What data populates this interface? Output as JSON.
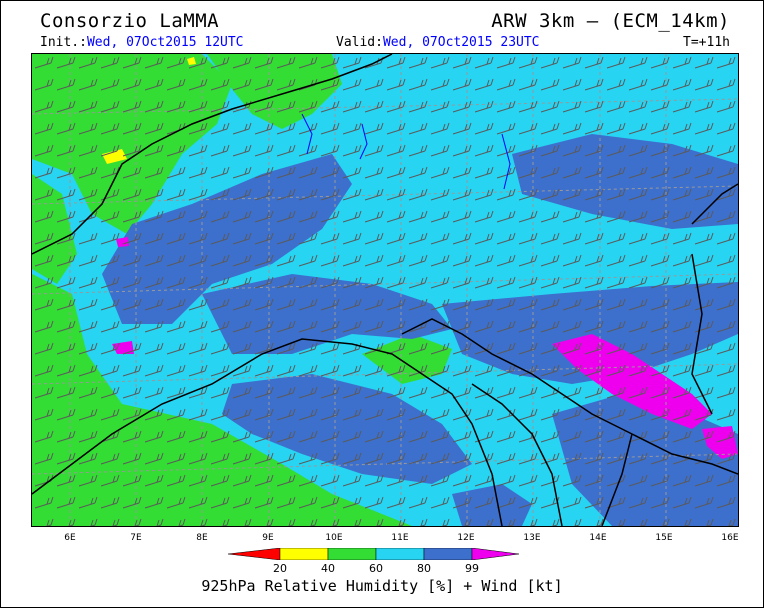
{
  "header": {
    "title": "Consorzio LaMMA",
    "model": "ARW 3km – (ECM_14km)",
    "init_label": "Init.:",
    "init_value": "Wed, 07Oct2015 12UTC",
    "valid_label": "Valid:",
    "valid_value": "Wed, 07Oct2015 23UTC",
    "forecast_step": "T=+11h"
  },
  "map": {
    "x_ticks": [
      "6E",
      "7E",
      "8E",
      "9E",
      "10E",
      "11E",
      "12E",
      "13E",
      "14E",
      "15E",
      "16E"
    ],
    "palette": {
      "dry_red": "#ff0000",
      "yellow": "#ffff00",
      "green": "#33dd33",
      "cyan": "#27d4f2",
      "blue": "#3d6fcd",
      "magenta": "#ee00ee",
      "border_black": "#000000",
      "grid_grey": "#999999",
      "barb_grey": "#5a5a5a"
    }
  },
  "colorbar": {
    "labels": [
      "20",
      "40",
      "60",
      "80",
      "99"
    ],
    "colors": [
      "#ff0000",
      "#ffff00",
      "#33dd33",
      "#27d4f2",
      "#3d6fcd",
      "#ee00ee"
    ],
    "title": "925hPa Relative Humidity [%] + Wind [kt]"
  }
}
